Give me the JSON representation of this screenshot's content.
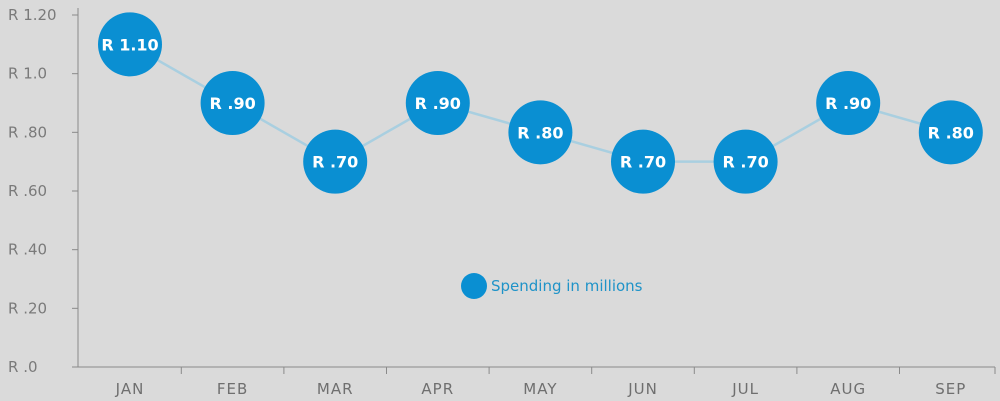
{
  "chart_data": {
    "type": "line",
    "categories": [
      "JAN",
      "FEB",
      "MAR",
      "APR",
      "MAY",
      "JUN",
      "JUL",
      "AUG",
      "SEP"
    ],
    "series": [
      {
        "name": "Spending in millions",
        "values": [
          1.1,
          0.9,
          0.7,
          0.9,
          0.8,
          0.7,
          0.7,
          0.9,
          0.8
        ],
        "labels": [
          "R 1.10",
          "R .90",
          "R .70",
          "R .90",
          "R .80",
          "R .70",
          "R .70",
          "R .90",
          "R .80"
        ]
      }
    ],
    "y_ticks": [
      0,
      0.2,
      0.4,
      0.6,
      0.8,
      1.0,
      1.2
    ],
    "y_tick_labels": [
      "R .0",
      "R .20",
      "R .40",
      "R .60",
      "R .80",
      "R 1.0",
      "R 1.20"
    ],
    "ylim": [
      0,
      1.2
    ],
    "grid": false,
    "legend": "center",
    "colors": {
      "marker": "#0a8fd2",
      "line": "#a9cfe0",
      "axis": "#8a8a8a",
      "legend_text": "#1f93c8"
    }
  }
}
